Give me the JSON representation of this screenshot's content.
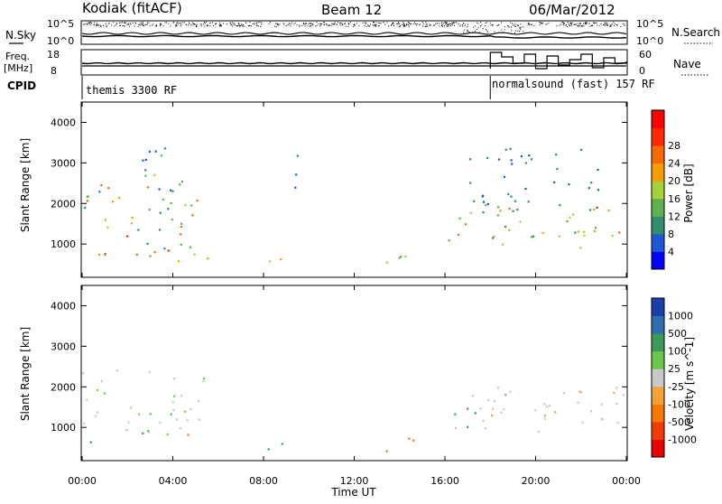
{
  "header": {
    "station": "Kodiak (fitACF)",
    "beam": "Beam 12",
    "date": "06/Mar/2012"
  },
  "info_panel": {
    "left_top_label": "N.Sky",
    "left_mid_label_1": "Freq.",
    "left_mid_label_2": "[MHz]",
    "left_bottom_label": "CPID",
    "right_top_label": "N.Search",
    "right_mid_label": "Nave",
    "top_ticks_left": [
      "10^5",
      "10^0"
    ],
    "top_ticks_right": [
      "10^5",
      "10^0"
    ],
    "freq_ticks": [
      "18",
      "8"
    ],
    "nave_ticks": [
      "60",
      "0"
    ],
    "cpid_1": "themis 3300 RF",
    "cpid_2": "normalsound (fast) 157 RF",
    "cpid_switch_hour": 18.0
  },
  "time_axis": {
    "label": "Time UT",
    "ticks": [
      "00:00",
      "04:00",
      "08:00",
      "12:00",
      "16:00",
      "20:00",
      "00:00"
    ],
    "range_hours": [
      0,
      24
    ]
  },
  "chart_data": [
    {
      "type": "heatmap",
      "name": "power",
      "ylabel": "Slant Range [km]",
      "y_ticks": [
        "1000",
        "2000",
        "3000",
        "4000"
      ],
      "ylim": [
        180,
        4500
      ],
      "colorbar_label": "Power [dB]",
      "colorbar_ticks": [
        "4",
        "8",
        "12",
        "16",
        "20",
        "24",
        "28"
      ],
      "colorbar_colors": [
        "#0000ff",
        "#1f57d6",
        "#2f8f6f",
        "#5fb04f",
        "#a5d23a",
        "#f5a000",
        "#f86a00",
        "#ff2a00",
        "#ff0000"
      ],
      "regions": [
        {
          "t0": 0.0,
          "t1": 5.2,
          "r0": 700,
          "r1": 2600,
          "peak": 24
        },
        {
          "t0": 2.5,
          "t1": 4.8,
          "r0": 1600,
          "r1": 3400,
          "peak": 14
        },
        {
          "t0": 3.0,
          "t1": 5.5,
          "r0": 600,
          "r1": 1000,
          "peak": 22
        },
        {
          "t0": 7.6,
          "t1": 9.2,
          "r0": 450,
          "r1": 750,
          "peak": 20
        },
        {
          "t0": 8.8,
          "t1": 9.6,
          "r0": 2400,
          "r1": 3300,
          "peak": 10
        },
        {
          "t0": 12.2,
          "t1": 14.8,
          "r0": 450,
          "r1": 800,
          "peak": 18
        },
        {
          "t0": 16.0,
          "t1": 24.0,
          "r0": 900,
          "r1": 2100,
          "peak": 22
        },
        {
          "t0": 17.0,
          "t1": 23.0,
          "r0": 1800,
          "r1": 3400,
          "peak": 10
        }
      ]
    },
    {
      "type": "heatmap",
      "name": "velocity",
      "ylabel": "Slant Range [km]",
      "y_ticks": [
        "1000",
        "2000",
        "3000",
        "4000"
      ],
      "ylim": [
        180,
        4500
      ],
      "colorbar_label": "Velocity [m s^-1]",
      "colorbar_ticks": [
        "1000",
        "500",
        "100",
        "25",
        "-25",
        "-100",
        "-500",
        "-1000"
      ],
      "colorbar_colors": [
        "#1b3fa8",
        "#2f6fb0",
        "#3d9a57",
        "#6bc84a",
        "#c8c8c8",
        "#f4a13a",
        "#f77800",
        "#f23d00",
        "#e60000"
      ],
      "regions": [
        {
          "t0": 0.0,
          "t1": 5.5,
          "r0": 900,
          "r1": 2500,
          "v": 0
        },
        {
          "t0": 0.3,
          "t1": 1.3,
          "r0": 500,
          "r1": 850,
          "v": 100
        },
        {
          "t0": 2.6,
          "t1": 4.6,
          "r0": 550,
          "r1": 1000,
          "v": 80
        },
        {
          "t0": 4.6,
          "t1": 5.4,
          "r0": 650,
          "r1": 850,
          "v": -300
        },
        {
          "t0": 7.5,
          "t1": 9.4,
          "r0": 450,
          "r1": 750,
          "v": 150
        },
        {
          "t0": 12.7,
          "t1": 14.6,
          "r0": 420,
          "r1": 800,
          "v": -200
        },
        {
          "t0": 16.3,
          "t1": 24.0,
          "r0": 900,
          "r1": 2100,
          "v": 0
        },
        {
          "t0": 16.3,
          "t1": 17.6,
          "r0": 800,
          "r1": 1500,
          "v": 150
        }
      ]
    }
  ]
}
